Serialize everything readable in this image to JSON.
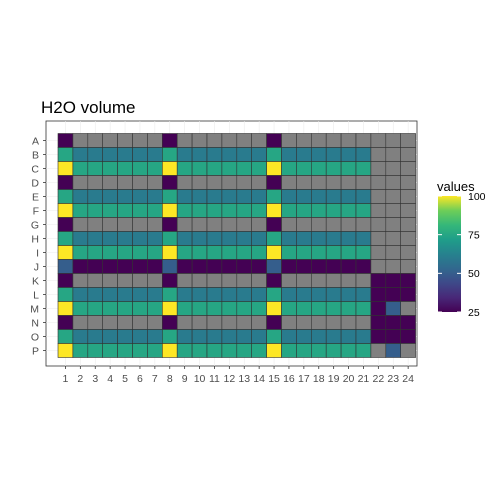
{
  "chart_data": {
    "type": "heatmap",
    "title": "H2O volume",
    "xlabel": "",
    "ylabel": "",
    "rows": [
      "A",
      "B",
      "C",
      "D",
      "E",
      "F",
      "G",
      "H",
      "I",
      "J",
      "K",
      "L",
      "M",
      "N",
      "O",
      "P"
    ],
    "columns": [
      "1",
      "2",
      "3",
      "4",
      "5",
      "6",
      "7",
      "8",
      "9",
      "10",
      "11",
      "12",
      "13",
      "14",
      "15",
      "16",
      "17",
      "18",
      "19",
      "20",
      "21",
      "22",
      "23",
      "24"
    ],
    "values": [
      [
        25,
        null,
        null,
        null,
        null,
        null,
        null,
        25,
        null,
        null,
        null,
        null,
        null,
        null,
        25,
        null,
        null,
        null,
        null,
        null,
        null,
        null,
        null,
        null
      ],
      [
        75,
        60,
        60,
        60,
        60,
        60,
        60,
        75,
        60,
        60,
        60,
        60,
        60,
        60,
        75,
        60,
        60,
        60,
        60,
        60,
        60,
        null,
        null,
        null
      ],
      [
        100,
        75,
        75,
        75,
        75,
        75,
        75,
        100,
        75,
        75,
        75,
        75,
        75,
        75,
        100,
        75,
        75,
        75,
        75,
        75,
        75,
        null,
        null,
        null
      ],
      [
        25,
        null,
        null,
        null,
        null,
        null,
        null,
        25,
        null,
        null,
        null,
        null,
        null,
        null,
        25,
        null,
        null,
        null,
        null,
        null,
        null,
        null,
        null,
        null
      ],
      [
        75,
        60,
        60,
        60,
        60,
        60,
        60,
        75,
        60,
        60,
        60,
        60,
        60,
        60,
        75,
        60,
        60,
        60,
        60,
        60,
        60,
        null,
        null,
        null
      ],
      [
        100,
        75,
        75,
        75,
        75,
        75,
        75,
        100,
        75,
        75,
        75,
        75,
        75,
        75,
        100,
        75,
        75,
        75,
        75,
        75,
        75,
        null,
        null,
        null
      ],
      [
        25,
        null,
        null,
        null,
        null,
        null,
        null,
        25,
        null,
        null,
        null,
        null,
        null,
        null,
        25,
        null,
        null,
        null,
        null,
        null,
        null,
        null,
        null,
        null
      ],
      [
        75,
        60,
        60,
        60,
        60,
        60,
        60,
        75,
        60,
        60,
        60,
        60,
        60,
        60,
        75,
        60,
        60,
        60,
        60,
        60,
        60,
        null,
        null,
        null
      ],
      [
        100,
        75,
        75,
        75,
        75,
        75,
        75,
        100,
        75,
        75,
        75,
        75,
        75,
        75,
        100,
        75,
        75,
        75,
        75,
        75,
        75,
        null,
        null,
        null
      ],
      [
        50,
        25,
        25,
        25,
        25,
        25,
        25,
        50,
        25,
        25,
        25,
        25,
        25,
        25,
        50,
        25,
        25,
        25,
        25,
        25,
        25,
        null,
        null,
        null
      ],
      [
        25,
        null,
        null,
        null,
        null,
        null,
        null,
        25,
        null,
        null,
        null,
        null,
        null,
        null,
        25,
        null,
        null,
        null,
        null,
        null,
        null,
        25,
        25,
        25
      ],
      [
        75,
        60,
        60,
        60,
        60,
        60,
        60,
        75,
        60,
        60,
        60,
        60,
        60,
        60,
        75,
        60,
        60,
        60,
        60,
        60,
        60,
        25,
        25,
        25
      ],
      [
        100,
        75,
        75,
        75,
        75,
        75,
        75,
        100,
        75,
        75,
        75,
        75,
        75,
        75,
        100,
        75,
        75,
        75,
        75,
        75,
        75,
        25,
        50,
        null
      ],
      [
        25,
        null,
        null,
        null,
        null,
        null,
        null,
        25,
        null,
        null,
        null,
        null,
        null,
        null,
        25,
        null,
        null,
        null,
        null,
        null,
        null,
        25,
        25,
        25
      ],
      [
        75,
        60,
        60,
        60,
        60,
        60,
        60,
        75,
        60,
        60,
        60,
        60,
        60,
        60,
        75,
        60,
        60,
        60,
        60,
        60,
        60,
        25,
        25,
        25
      ],
      [
        100,
        75,
        75,
        75,
        75,
        75,
        75,
        100,
        75,
        75,
        75,
        75,
        75,
        75,
        100,
        75,
        75,
        75,
        75,
        75,
        75,
        null,
        50,
        null
      ]
    ],
    "color_scale": "viridis",
    "color_range": [
      25,
      100
    ],
    "na_color": "#808080",
    "legend": {
      "title": "values",
      "position": "right",
      "ticks": [
        25,
        50,
        75,
        100
      ],
      "tick_labels": [
        "25",
        "50",
        "75",
        "100"
      ]
    },
    "grid": true
  }
}
